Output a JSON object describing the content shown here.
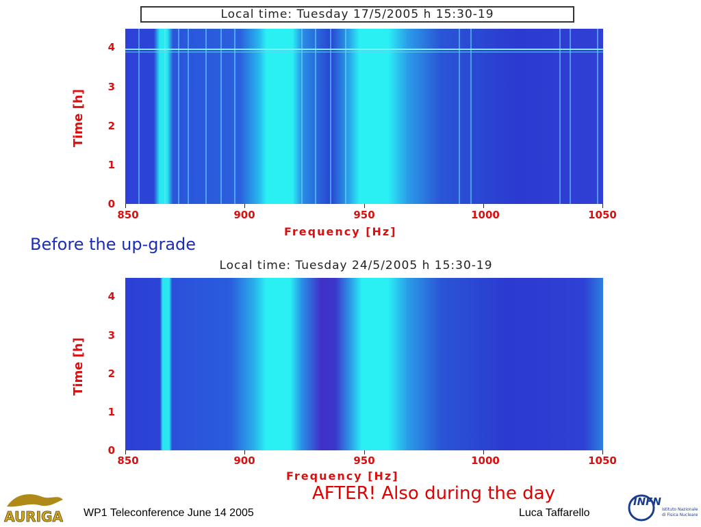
{
  "top_chart": {
    "title": "Local time: Tuesday 17/5/2005 h 15:30-19",
    "xlabel": "Frequency   [Hz]",
    "ylabel": "Time  [h]",
    "x_ticks": [
      "850",
      "900",
      "950",
      "1000",
      "1050"
    ],
    "y_ticks": [
      "0",
      "1",
      "2",
      "3",
      "4"
    ]
  },
  "bottom_chart": {
    "title": "Local time: Tuesday 24/5/2005 h 15:30-19",
    "xlabel": "Frequency  [Hz]",
    "ylabel": "Time  [h]",
    "x_ticks": [
      "850",
      "900",
      "950",
      "1000",
      "1050"
    ],
    "y_ticks": [
      "0",
      "1",
      "2",
      "3",
      "4"
    ]
  },
  "captions": {
    "before": "Before the up-grade",
    "after": "AFTER! Also during the day"
  },
  "footer": {
    "left_logo": "AURIGA",
    "conference": "WP1 Teleconference June 14 2005",
    "author": "Luca Taffarello",
    "right_logo": "INFN",
    "right_logo_sub1": "Istituto Nazionale",
    "right_logo_sub2": "di Fisica Nucleare"
  },
  "chart_data": [
    {
      "type": "heatmap",
      "title": "Local time: Tuesday 17/5/2005 h 15:30-19",
      "xlabel": "Frequency   [Hz]",
      "ylabel": "Time  [h]",
      "xlim": [
        850,
        1050
      ],
      "ylim": [
        0,
        4.5
      ],
      "x_ticks": [
        850,
        900,
        950,
        1000,
        1050
      ],
      "y_ticks": [
        0,
        1,
        2,
        3,
        4
      ],
      "bright_bands_hz": [
        [
          865,
          868
        ],
        [
          907,
          920
        ],
        [
          947,
          962
        ]
      ],
      "colors": {
        "background": "#2a3fd8",
        "band": "#22e6ee"
      }
    },
    {
      "type": "heatmap",
      "title": "Local time: Tuesday 24/5/2005 h 15:30-19",
      "xlabel": "Frequency  [Hz]",
      "ylabel": "Time  [h]",
      "xlim": [
        850,
        1050
      ],
      "ylim": [
        0,
        4.5
      ],
      "x_ticks": [
        850,
        900,
        950,
        1000,
        1050
      ],
      "y_ticks": [
        0,
        1,
        2,
        3,
        4
      ],
      "bright_bands_hz": [
        [
          866,
          868
        ],
        [
          907,
          920
        ],
        [
          948,
          962
        ]
      ],
      "colors": {
        "background": "#2a3fd8",
        "band": "#22e6ee"
      }
    }
  ]
}
